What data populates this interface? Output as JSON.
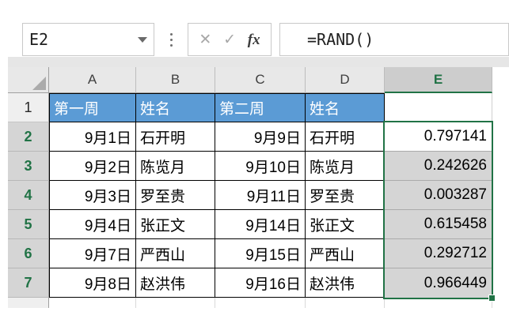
{
  "formula_bar": {
    "cell_reference": "E2",
    "formula": "=RAND()",
    "icons": {
      "cancel": "✕",
      "enter": "✓",
      "fx": "fx"
    }
  },
  "colors": {
    "header_fill_blue": "#5b9bd5",
    "excel_green": "#217346",
    "selection_fill_gray": "#d5d5d5"
  },
  "sheet": {
    "column_headers": [
      "A",
      "B",
      "C",
      "D",
      "E"
    ],
    "selected_column": "E",
    "selected_range": "E2:E7",
    "row_headers": [
      "1",
      "2",
      "3",
      "4",
      "5",
      "6",
      "7"
    ],
    "rows": [
      [
        "第一周",
        "姓名",
        "第二周",
        "姓名",
        ""
      ],
      [
        "9月1日",
        "石开明",
        "9月9日",
        "石开明",
        "0.797141"
      ],
      [
        "9月2日",
        "陈览月",
        "9月10日",
        "陈览月",
        "0.242626"
      ],
      [
        "9月3日",
        "罗至贵",
        "9月11日",
        "罗至贵",
        "0.003287"
      ],
      [
        "9月4日",
        "张正文",
        "9月14日",
        "张正文",
        "0.615458"
      ],
      [
        "9月7日",
        "严西山",
        "9月15日",
        "严西山",
        "0.292712"
      ],
      [
        "9月8日",
        "赵洪伟",
        "9月16日",
        "赵洪伟",
        "0.966449"
      ]
    ]
  }
}
